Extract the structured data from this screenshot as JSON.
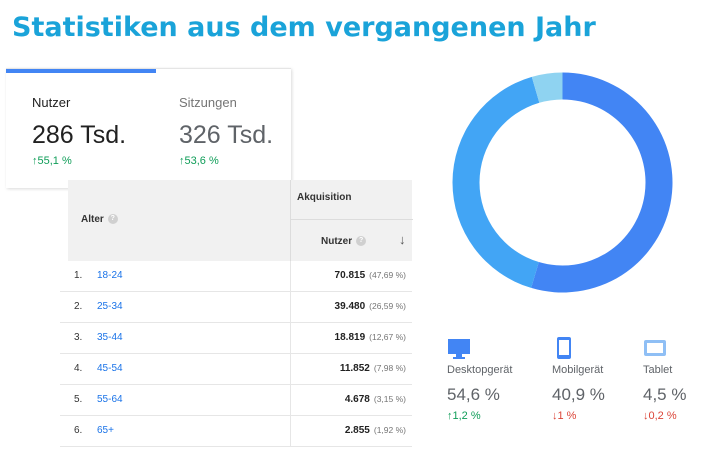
{
  "title": "Statistiken aus dem vergangenen Jahr",
  "metrics": [
    {
      "label": "Nutzer",
      "value": "286 Tsd.",
      "change": "↑55,1 %",
      "active": true
    },
    {
      "label": "Sitzungen",
      "value": "326 Tsd.",
      "change": "↑53,6 %",
      "active": false
    }
  ],
  "age_table": {
    "col_age": "Alter",
    "group": "Akquisition",
    "col_users": "Nutzer",
    "help_glyph": "?",
    "sort_glyph": "↓",
    "rows": [
      {
        "num": "1.",
        "age": "18-24",
        "value": "70.815",
        "pct": "(47,69 %)"
      },
      {
        "num": "2.",
        "age": "25-34",
        "value": "39.480",
        "pct": "(26,59 %)"
      },
      {
        "num": "3.",
        "age": "35-44",
        "value": "18.819",
        "pct": "(12,67 %)"
      },
      {
        "num": "4.",
        "age": "45-54",
        "value": "11.852",
        "pct": "(7,98 %)"
      },
      {
        "num": "5.",
        "age": "55-64",
        "value": "4.678",
        "pct": "(3,15 %)"
      },
      {
        "num": "6.",
        "age": "65+",
        "value": "2.855",
        "pct": "(1,92 %)"
      }
    ]
  },
  "devices": {
    "colors": {
      "desktop": "#4285f4",
      "mobile": "#42a5f5",
      "tablet": "#8fd3f1"
    },
    "items": [
      {
        "icon": "desktop-icon",
        "label": "Desktopgerät",
        "value": "54,6 %",
        "change": "↑1,2 %",
        "trend": "up",
        "share": 54.6
      },
      {
        "icon": "mobile-icon",
        "label": "Mobilgerät",
        "value": "40,9 %",
        "change": "↓1 %",
        "trend": "down",
        "share": 40.9
      },
      {
        "icon": "tablet-icon",
        "label": "Tablet",
        "value": "4,5 %",
        "change": "↓0,2 %",
        "trend": "down",
        "share": 4.5
      }
    ]
  }
}
